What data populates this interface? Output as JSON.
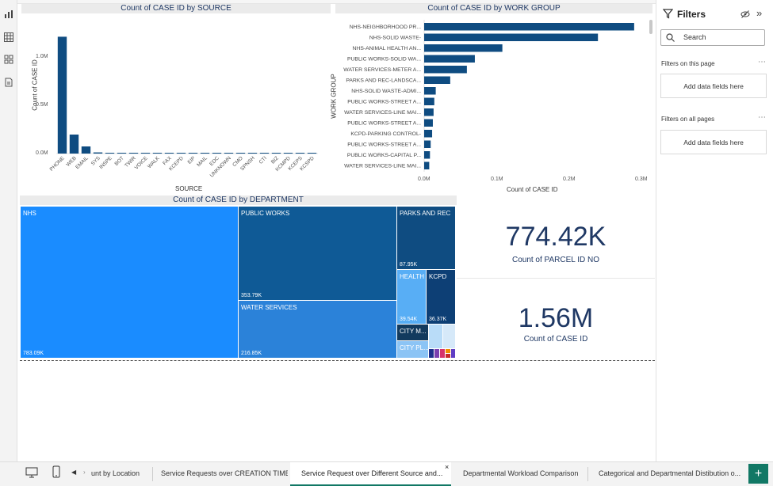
{
  "app": {
    "rail_icons": [
      "report-view-icon",
      "table-view-icon",
      "model-view-icon",
      "dax-query-icon"
    ]
  },
  "source_chart": {
    "title": "Count of CASE ID by SOURCE",
    "xlabel": "SOURCE",
    "ylabel": "Count of CASE ID",
    "yticks": [
      "1.0M",
      "0.5M",
      "0.0M"
    ],
    "color": "#0f4c81"
  },
  "workgroup_chart": {
    "title": "Count of CASE ID by WORK GROUP",
    "xlabel": "Count of CASE ID",
    "ylabel": "WORK GROUP",
    "xticks": [
      "0.0M",
      "0.1M",
      "0.2M",
      "0.3M"
    ],
    "color": "#0f4c81"
  },
  "dept_chart": {
    "title": "Count of CASE ID by DEPARTMENT",
    "nodes": [
      {
        "name": "NHS",
        "value": "783.09K",
        "color": "#1a8cff"
      },
      {
        "name": "PUBLIC WORKS",
        "value": "353.79K",
        "color": "#0f5a96"
      },
      {
        "name": "WATER SERVICES",
        "value": "216.85K",
        "color": "#2b82d9"
      },
      {
        "name": "PARKS AND REC",
        "value": "87.95K",
        "color": "#0f4c81"
      },
      {
        "name": "HEALTH",
        "value": "39.54K",
        "color": "#58aef5"
      },
      {
        "name": "KCPD",
        "value": "36.37K",
        "color": "#0d3f75"
      },
      {
        "name": "CITY M...",
        "value": "",
        "color": "#123a5e"
      },
      {
        "name": "CITY PL...",
        "value": "",
        "color": "#8cc4f5"
      }
    ]
  },
  "cards": [
    {
      "value": "774.42K",
      "label": "Count of PARCEL ID NO"
    },
    {
      "value": "1.56M",
      "label": "Count of CASE ID"
    }
  ],
  "filters": {
    "title": "Filters",
    "search_placeholder": "Search",
    "on_this_page": "Filters on this page",
    "on_all_pages": "Filters on all pages",
    "add_fields": "Add data fields here"
  },
  "tabs": [
    {
      "label": "unt by Location"
    },
    {
      "label": "Service Requests over CREATION TIME"
    },
    {
      "label": "Service Request over Different Source and...",
      "active": true,
      "close": "×"
    },
    {
      "label": "Departmental Workload Comparison"
    },
    {
      "label": "Categorical and Departmental Distibution o..."
    }
  ],
  "add_page_label": "+",
  "chart_data": [
    {
      "type": "bar",
      "title": "Count of CASE ID by SOURCE",
      "xlabel": "SOURCE",
      "ylabel": "Count of CASE ID",
      "ylim": [
        0,
        1300000
      ],
      "categories": [
        "PHONE",
        "WEB",
        "EMAIL",
        "SYS",
        "INSPE",
        "BOT",
        "TWIR",
        "VOICE",
        "WALK",
        "FAX",
        "KCEPD",
        "EIP",
        "MAIL",
        "EDC",
        "UNKNOWN",
        "CMO",
        "SPNSH",
        "CTI",
        "BIZ",
        "KCMPD",
        "KCEPS",
        "KCSPD"
      ],
      "values": [
        1230000,
        200000,
        75000,
        12000,
        8000,
        6000,
        4000,
        3000,
        2500,
        2000,
        1500,
        1200,
        1000,
        900,
        800,
        700,
        600,
        500,
        400,
        300,
        250,
        200
      ]
    },
    {
      "type": "bar",
      "orientation": "horizontal",
      "title": "Count of CASE ID by WORK GROUP",
      "xlabel": "Count of CASE ID",
      "ylabel": "WORK GROUP",
      "xlim": [
        0,
        0.3
      ],
      "categories": [
        "NHS-NEIGHBORHOOD PR...",
        "NHS-SOLID WASTE-",
        "NHS-ANIMAL HEALTH AN...",
        "PUBLIC WORKS-SOLID WA...",
        "WATER SERVICES-METER A...",
        "PARKS AND REC-LANDSCA...",
        "NHS-SOLID WASTE-ADMI...",
        "PUBLIC WORKS-STREET A...",
        "WATER SERVICES-LINE MAI...",
        "PUBLIC WORKS-STREET A...",
        "KCPD-PARKING CONTROL-",
        "PUBLIC WORKS-STREET A...",
        "PUBLIC WORKS-CAPITAL P...",
        "WATER SERVICES-LINE MAI..."
      ],
      "values": [
        0.29,
        0.24,
        0.108,
        0.07,
        0.059,
        0.036,
        0.016,
        0.014,
        0.013,
        0.012,
        0.011,
        0.009,
        0.008,
        0.007
      ]
    },
    {
      "type": "treemap",
      "title": "Count of CASE ID by DEPARTMENT",
      "categories": [
        "NHS",
        "PUBLIC WORKS",
        "WATER SERVICES",
        "PARKS AND REC",
        "HEALTH",
        "KCPD"
      ],
      "values": [
        783090,
        353790,
        216850,
        87950,
        39540,
        36370
      ]
    }
  ]
}
